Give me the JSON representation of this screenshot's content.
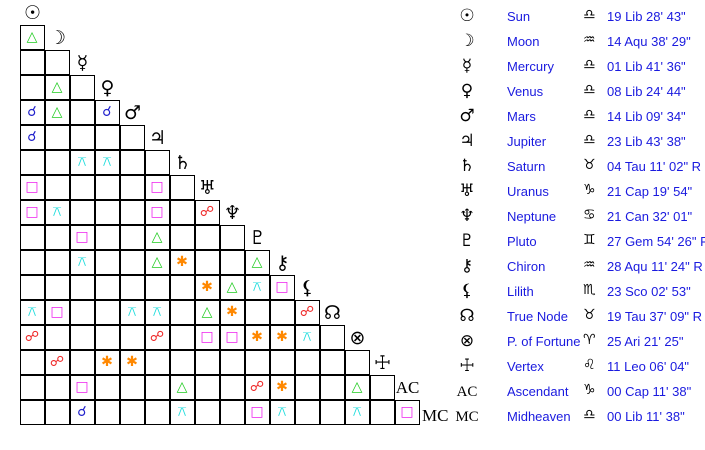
{
  "aspect_colors": {
    "trine": "#22cc22",
    "conjunction": "#2222cc",
    "square": "#ee22ee",
    "quincunx": "#22dddd",
    "sextile": "#ff8800",
    "opposition": "#ee2222"
  },
  "aspect_glyphs": {
    "trine": "△",
    "conjunction": "☌",
    "square": "□",
    "quincunx": "⚻",
    "sextile": "✱",
    "opposition": "☍"
  },
  "bodies": [
    {
      "glyph": "☉",
      "name": "Sun",
      "sign": "♎",
      "position": "19 Lib 28' 43\""
    },
    {
      "glyph": "☽",
      "name": "Moon",
      "sign": "♒",
      "position": "14 Aqu 38' 29\""
    },
    {
      "glyph": "☿",
      "name": "Mercury",
      "sign": "♎",
      "position": "01 Lib 41' 36\""
    },
    {
      "glyph": "♀",
      "name": "Venus",
      "sign": "♎",
      "position": "08 Lib 24' 44\""
    },
    {
      "glyph": "♂",
      "name": "Mars",
      "sign": "♎",
      "position": "14 Lib 09' 34\""
    },
    {
      "glyph": "♃",
      "name": "Jupiter",
      "sign": "♎",
      "position": "23 Lib 43' 38\""
    },
    {
      "glyph": "♄",
      "name": "Saturn",
      "sign": "♉",
      "position": "04 Tau 11' 02\" R"
    },
    {
      "glyph": "♅",
      "name": "Uranus",
      "sign": "♑",
      "position": "21 Cap 19' 54\""
    },
    {
      "glyph": "♆",
      "name": "Neptune",
      "sign": "♋",
      "position": "21 Can 32' 01\""
    },
    {
      "glyph": "♇",
      "name": "Pluto",
      "sign": "♊",
      "position": "27 Gem 54' 26\" R"
    },
    {
      "glyph": "⚷",
      "name": "Chiron",
      "sign": "♒",
      "position": "28 Aqu 11' 24\" R"
    },
    {
      "glyph": "⚸",
      "name": "Lilith",
      "sign": "♏",
      "position": "23 Sco 02' 53\""
    },
    {
      "glyph": "☊",
      "name": "True Node",
      "sign": "♉",
      "position": "19 Tau 37' 09\" R"
    },
    {
      "glyph": "⊗",
      "name": "P. of Fortune",
      "sign": "♈",
      "position": "25 Ari 21' 25\""
    },
    {
      "glyph": "☩",
      "name": "Vertex",
      "sign": "♌",
      "position": "11 Leo 06' 04\""
    },
    {
      "glyph": "AC",
      "name": "Ascendant",
      "sign": "♑",
      "position": "00 Cap 11' 38\""
    },
    {
      "glyph": "MC",
      "name": "Midheaven",
      "sign": "♎",
      "position": "00 Lib 11' 38\""
    }
  ],
  "aspects": [
    [
      "Moon",
      "Sun",
      "trine"
    ],
    [
      "Venus",
      "Moon",
      "trine"
    ],
    [
      "Mars",
      "Sun",
      "conjunction"
    ],
    [
      "Mars",
      "Moon",
      "trine"
    ],
    [
      "Mars",
      "Venus",
      "conjunction"
    ],
    [
      "Jupiter",
      "Sun",
      "conjunction"
    ],
    [
      "Saturn",
      "Mercury",
      "quincunx"
    ],
    [
      "Saturn",
      "Venus",
      "quincunx"
    ],
    [
      "Uranus",
      "Sun",
      "square"
    ],
    [
      "Uranus",
      "Jupiter",
      "square"
    ],
    [
      "Neptune",
      "Sun",
      "square"
    ],
    [
      "Neptune",
      "Moon",
      "quincunx"
    ],
    [
      "Neptune",
      "Jupiter",
      "square"
    ],
    [
      "Neptune",
      "Uranus",
      "opposition"
    ],
    [
      "Pluto",
      "Mercury",
      "square"
    ],
    [
      "Pluto",
      "Jupiter",
      "trine"
    ],
    [
      "Chiron",
      "Mercury",
      "quincunx"
    ],
    [
      "Chiron",
      "Jupiter",
      "trine"
    ],
    [
      "Chiron",
      "Saturn",
      "sextile"
    ],
    [
      "Chiron",
      "Pluto",
      "trine"
    ],
    [
      "Lilith",
      "Uranus",
      "sextile"
    ],
    [
      "Lilith",
      "Neptune",
      "trine"
    ],
    [
      "Lilith",
      "Pluto",
      "quincunx"
    ],
    [
      "Lilith",
      "Chiron",
      "square"
    ],
    [
      "True Node",
      "Sun",
      "quincunx"
    ],
    [
      "True Node",
      "Moon",
      "square"
    ],
    [
      "True Node",
      "Mars",
      "quincunx"
    ],
    [
      "True Node",
      "Jupiter",
      "quincunx"
    ],
    [
      "True Node",
      "Uranus",
      "trine"
    ],
    [
      "True Node",
      "Neptune",
      "sextile"
    ],
    [
      "True Node",
      "Lilith",
      "opposition"
    ],
    [
      "P. of Fortune",
      "Sun",
      "opposition"
    ],
    [
      "P. of Fortune",
      "Jupiter",
      "opposition"
    ],
    [
      "P. of Fortune",
      "Uranus",
      "square"
    ],
    [
      "P. of Fortune",
      "Neptune",
      "square"
    ],
    [
      "P. of Fortune",
      "Pluto",
      "sextile"
    ],
    [
      "P. of Fortune",
      "Chiron",
      "sextile"
    ],
    [
      "P. of Fortune",
      "Lilith",
      "quincunx"
    ],
    [
      "Vertex",
      "Moon",
      "opposition"
    ],
    [
      "Vertex",
      "Venus",
      "sextile"
    ],
    [
      "Vertex",
      "Mars",
      "sextile"
    ],
    [
      "Ascendant",
      "Mercury",
      "square"
    ],
    [
      "Ascendant",
      "Saturn",
      "trine"
    ],
    [
      "Ascendant",
      "Pluto",
      "opposition"
    ],
    [
      "Ascendant",
      "Chiron",
      "sextile"
    ],
    [
      "Ascendant",
      "P. of Fortune",
      "trine"
    ],
    [
      "Midheaven",
      "Mercury",
      "conjunction"
    ],
    [
      "Midheaven",
      "Saturn",
      "quincunx"
    ],
    [
      "Midheaven",
      "Pluto",
      "square"
    ],
    [
      "Midheaven",
      "Chiron",
      "quincunx"
    ],
    [
      "Midheaven",
      "P. of Fortune",
      "quincunx"
    ],
    [
      "Midheaven",
      "Ascendant",
      "square"
    ]
  ]
}
